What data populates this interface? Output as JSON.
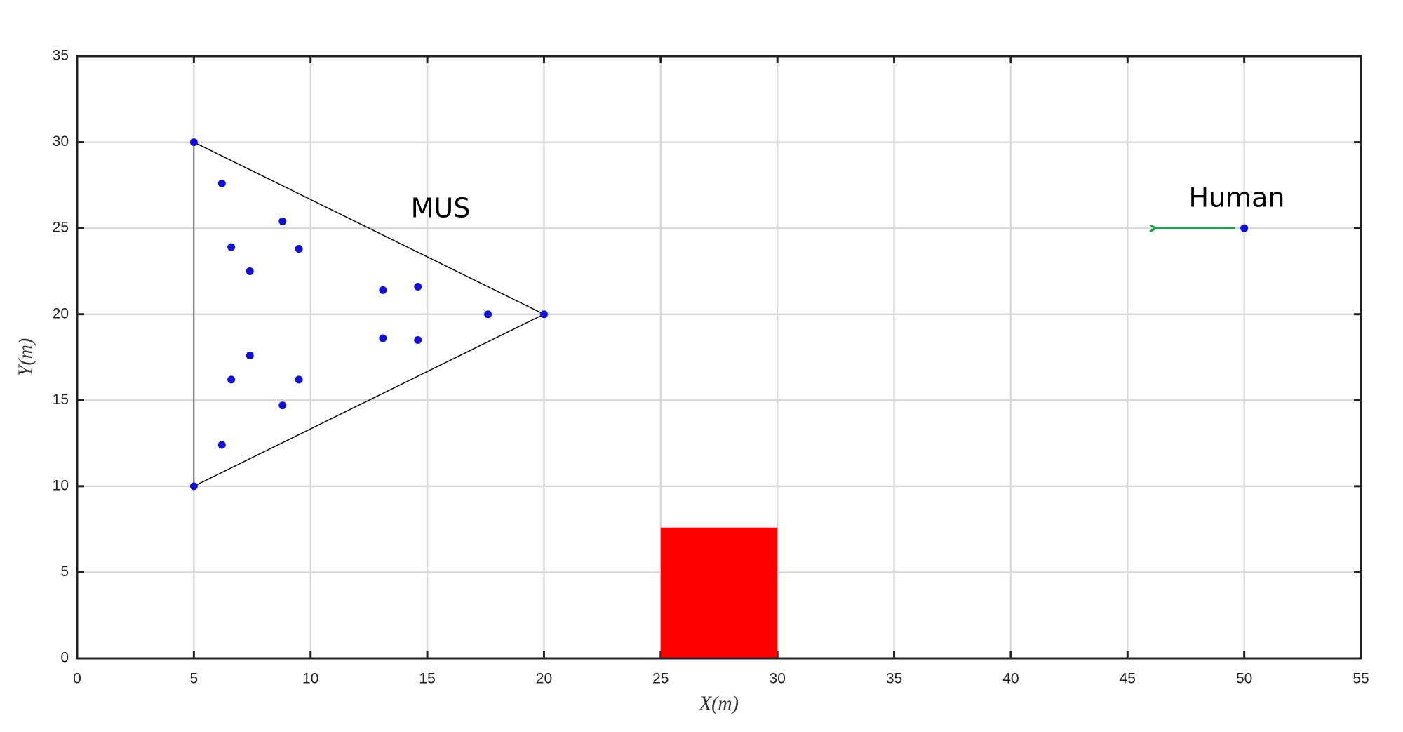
{
  "chart_data": {
    "type": "scatter",
    "xlabel": "X(m)",
    "ylabel": "Y(m)",
    "xlim": [
      0,
      55
    ],
    "ylim": [
      0,
      35
    ],
    "xticks": [
      0,
      5,
      10,
      15,
      20,
      25,
      30,
      35,
      40,
      45,
      50,
      55
    ],
    "yticks": [
      0,
      5,
      10,
      15,
      20,
      25,
      30,
      35
    ],
    "grid": true,
    "series": [
      {
        "name": "MUS",
        "color": "#1010d8",
        "x": [
          5,
          5,
          20,
          6.2,
          8.8,
          6.6,
          9.5,
          7.4,
          13.1,
          14.6,
          17.6,
          13.1,
          14.6,
          7.4,
          6.6,
          9.5,
          8.8,
          6.2
        ],
        "y": [
          30,
          10,
          20,
          27.6,
          25.4,
          23.9,
          23.8,
          22.5,
          21.4,
          21.6,
          20,
          18.6,
          18.5,
          17.6,
          16.2,
          16.2,
          14.7,
          12.4
        ]
      },
      {
        "name": "Human",
        "color": "#1010d8",
        "x": [
          50
        ],
        "y": [
          25
        ]
      }
    ],
    "boundary": {
      "x": [
        5,
        5,
        20
      ],
      "y": [
        30,
        10,
        20
      ],
      "color": "#000000"
    },
    "direction": {
      "x": [
        49.6,
        46.2
      ],
      "y": [
        25,
        25
      ],
      "color": "#1aa34a"
    },
    "obstacle": {
      "x": [
        25,
        30
      ],
      "y": [
        0,
        7.6
      ],
      "color": "#ff0000"
    }
  }
}
